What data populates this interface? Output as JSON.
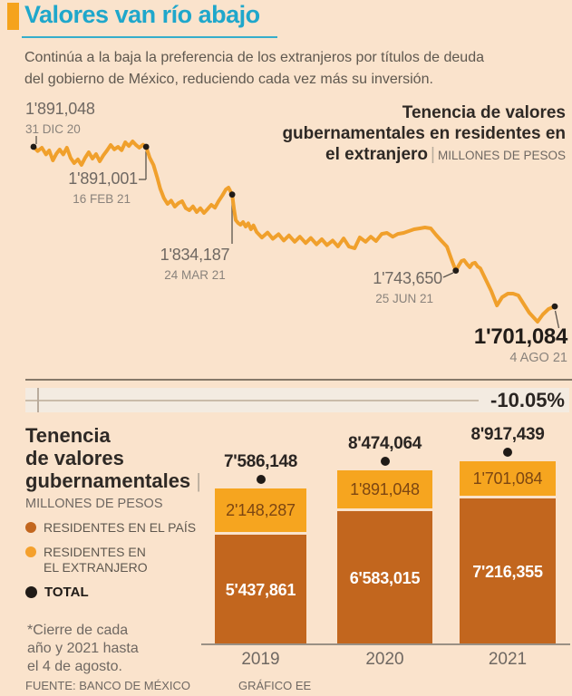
{
  "page": {
    "title": "Valores van río abajo",
    "subtitle_lines": [
      "Continúa a la baja la preferencia de los extranjeros por títulos de deuda",
      "del gobierno de México, reduciendo cada vez más su inversión."
    ],
    "change_label": "-10.05%",
    "footnote": "*Cierre de cada\naño y 2021 hasta\nel 4 de agosto.",
    "source": "FUENTE: BANCO DE MÉXICO",
    "credit": "GRÁFICO EE"
  },
  "colors": {
    "background": "#FAE3CC",
    "accent_teal": "#1FA7CB",
    "accent_orange": "#F5A31C",
    "line_orange": "#F0A02C",
    "bar_orange": "#F6A51F",
    "bar_sienna": "#C2661E",
    "dot_black": "#201B17",
    "ink": "#2A2522",
    "gray_text": "#6F6862"
  },
  "chart_data": [
    {
      "type": "line",
      "title_lines": [
        "Tenencia de valores",
        "gubernamentales en residentes en",
        "el extranjero"
      ],
      "units": "MILLONES DE PESOS",
      "ylim": [
        1675000,
        1900000
      ],
      "x_range": [
        "31 DIC 20",
        "4 AGO 21"
      ],
      "annotations": [
        {
          "label": "1'891,048",
          "date": "31 DIC 20",
          "f": 0.0,
          "value": 1891048
        },
        {
          "label": "1'891,001",
          "date": "16 FEB 21",
          "f": 0.216,
          "value": 1891001
        },
        {
          "label": "1'834,187",
          "date": "24 MAR 21",
          "f": 0.381,
          "value": 1834187
        },
        {
          "label": "1'743,650",
          "date": "25 JUN 21",
          "f": 0.81,
          "value": 1743650
        },
        {
          "label": "1'701,084",
          "date": "4 AGO 21",
          "f": 1.0,
          "value": 1701084
        }
      ],
      "series": [
        [
          0.0,
          1891048
        ],
        [
          0.008,
          1886000
        ],
        [
          0.016,
          1890000
        ],
        [
          0.024,
          1882000
        ],
        [
          0.03,
          1886700
        ],
        [
          0.037,
          1874900
        ],
        [
          0.044,
          1883000
        ],
        [
          0.05,
          1887800
        ],
        [
          0.057,
          1882000
        ],
        [
          0.064,
          1890000
        ],
        [
          0.071,
          1878000
        ],
        [
          0.078,
          1871600
        ],
        [
          0.085,
          1876000
        ],
        [
          0.092,
          1869500
        ],
        [
          0.099,
          1878000
        ],
        [
          0.106,
          1884600
        ],
        [
          0.113,
          1877000
        ],
        [
          0.12,
          1882400
        ],
        [
          0.127,
          1873800
        ],
        [
          0.134,
          1881000
        ],
        [
          0.141,
          1886700
        ],
        [
          0.148,
          1893200
        ],
        [
          0.155,
          1888000
        ],
        [
          0.162,
          1891000
        ],
        [
          0.169,
          1887000
        ],
        [
          0.176,
          1896400
        ],
        [
          0.183,
          1892000
        ],
        [
          0.19,
          1897500
        ],
        [
          0.197,
          1893000
        ],
        [
          0.203,
          1890000
        ],
        [
          0.21,
          1893500
        ],
        [
          0.216,
          1891001
        ],
        [
          0.223,
          1878000
        ],
        [
          0.23,
          1869500
        ],
        [
          0.237,
          1855000
        ],
        [
          0.243,
          1841400
        ],
        [
          0.25,
          1830000
        ],
        [
          0.257,
          1823100
        ],
        [
          0.264,
          1827000
        ],
        [
          0.271,
          1819800
        ],
        [
          0.278,
          1824000
        ],
        [
          0.285,
          1826300
        ],
        [
          0.292,
          1818000
        ],
        [
          0.299,
          1815500
        ],
        [
          0.306,
          1820000
        ],
        [
          0.313,
          1813400
        ],
        [
          0.32,
          1818000
        ],
        [
          0.327,
          1812300
        ],
        [
          0.334,
          1817000
        ],
        [
          0.341,
          1822000
        ],
        [
          0.348,
          1818500
        ],
        [
          0.355,
          1826300
        ],
        [
          0.362,
          1833000
        ],
        [
          0.369,
          1840300
        ],
        [
          0.374,
          1842500
        ],
        [
          0.381,
          1834187
        ],
        [
          0.385,
          1815000
        ],
        [
          0.388,
          1803700
        ],
        [
          0.393,
          1800000
        ],
        [
          0.397,
          1798300
        ],
        [
          0.402,
          1801500
        ],
        [
          0.407,
          1796100
        ],
        [
          0.412,
          1800000
        ],
        [
          0.417,
          1792900
        ],
        [
          0.422,
          1797500
        ],
        [
          0.428,
          1789600
        ],
        [
          0.438,
          1783000
        ],
        [
          0.449,
          1789000
        ],
        [
          0.459,
          1781500
        ],
        [
          0.47,
          1787000
        ],
        [
          0.48,
          1779500
        ],
        [
          0.49,
          1785500
        ],
        [
          0.501,
          1778000
        ],
        [
          0.511,
          1784000
        ],
        [
          0.522,
          1776500
        ],
        [
          0.532,
          1782500
        ],
        [
          0.543,
          1775000
        ],
        [
          0.553,
          1781000
        ],
        [
          0.563,
          1774000
        ],
        [
          0.574,
          1779500
        ],
        [
          0.584,
          1772500
        ],
        [
          0.595,
          1782000
        ],
        [
          0.605,
          1772300
        ],
        [
          0.616,
          1770200
        ],
        [
          0.626,
          1783100
        ],
        [
          0.637,
          1778000
        ],
        [
          0.647,
          1784000
        ],
        [
          0.657,
          1778800
        ],
        [
          0.668,
          1787400
        ],
        [
          0.678,
          1788500
        ],
        [
          0.689,
          1784000
        ],
        [
          0.699,
          1787400
        ],
        [
          0.71,
          1788500
        ],
        [
          0.72,
          1790700
        ],
        [
          0.73,
          1792900
        ],
        [
          0.741,
          1793900
        ],
        [
          0.751,
          1795000
        ],
        [
          0.762,
          1793900
        ],
        [
          0.772,
          1786400
        ],
        [
          0.783,
          1778800
        ],
        [
          0.793,
          1772300
        ],
        [
          0.803,
          1755100
        ],
        [
          0.81,
          1743650
        ],
        [
          0.816,
          1750000
        ],
        [
          0.821,
          1755100
        ],
        [
          0.826,
          1756200
        ],
        [
          0.832,
          1751000
        ],
        [
          0.837,
          1747600
        ],
        [
          0.842,
          1752000
        ],
        [
          0.847,
          1753000
        ],
        [
          0.852,
          1748500
        ],
        [
          0.857,
          1746500
        ],
        [
          0.868,
          1732400
        ],
        [
          0.878,
          1719500
        ],
        [
          0.889,
          1702200
        ],
        [
          0.899,
          1711900
        ],
        [
          0.91,
          1716200
        ],
        [
          0.92,
          1716200
        ],
        [
          0.93,
          1714100
        ],
        [
          0.941,
          1703300
        ],
        [
          0.951,
          1693600
        ],
        [
          0.962,
          1686100
        ],
        [
          0.967,
          1682800
        ],
        [
          0.977,
          1691400
        ],
        [
          0.988,
          1697900
        ],
        [
          1.0,
          1701084
        ]
      ]
    },
    {
      "type": "stacked-bar",
      "title_lines": [
        "Tenencia",
        "de valores",
        "gubernamentales"
      ],
      "units": "MILLONES DE PESOS",
      "legend": [
        {
          "label": "RESIDENTES EN EL PAÍS",
          "color": "#C2661E"
        },
        {
          "label": "RESIDENTES EN\nEL EXTRANJERO",
          "color": "#F4A02C"
        },
        {
          "label": "TOTAL",
          "color": "#201B17"
        }
      ],
      "categories": [
        "2019",
        "2020",
        "2021"
      ],
      "series": [
        {
          "name": "RESIDENTES EN EL PAÍS",
          "values": [
            5437861,
            6583015,
            7216355
          ],
          "labels": [
            "5'437,861",
            "6'583,015",
            "7'216,355"
          ]
        },
        {
          "name": "RESIDENTES EN EL EXTRANJERO",
          "values": [
            2148287,
            1891048,
            1701084
          ],
          "labels": [
            "2'148,287",
            "1'891,048",
            "1'701,084"
          ]
        }
      ],
      "totals": [
        7586148,
        8474064,
        8917439
      ],
      "total_labels": [
        "7'586,148",
        "8'474,064",
        "8'917,439"
      ]
    }
  ]
}
